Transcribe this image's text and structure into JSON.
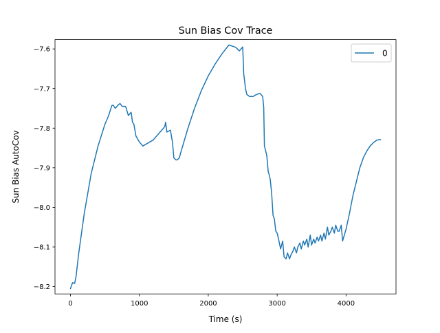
{
  "chart_data": {
    "type": "line",
    "title": "Sun Bias Cov Trace",
    "xlabel": "Time (s)",
    "ylabel": "Sun Bias AutoCov",
    "xlim": [
      -225,
      4725
    ],
    "ylim": [
      -8.2185,
      -7.5765
    ],
    "xticks": [
      0,
      1000,
      2000,
      3000,
      4000
    ],
    "xtick_labels": [
      "0",
      "1000",
      "2000",
      "3000",
      "4000"
    ],
    "yticks": [
      -8.2,
      -8.1,
      -8.0,
      -7.9,
      -7.8,
      -7.7,
      -7.6
    ],
    "ytick_labels": [
      "−8.2",
      "−8.1",
      "−8.0",
      "−7.9",
      "−7.8",
      "−7.7",
      "−7.6"
    ],
    "grid": false,
    "legend": "top-right",
    "series": [
      {
        "name": "0",
        "color": "#1f77b4",
        "x": [
          0,
          30,
          60,
          80,
          120,
          200,
          300,
          400,
          500,
          550,
          600,
          620,
          650,
          700,
          720,
          750,
          800,
          840,
          880,
          900,
          920,
          950,
          1000,
          1050,
          1100,
          1200,
          1300,
          1350,
          1370,
          1380,
          1400,
          1450,
          1480,
          1500,
          1530,
          1550,
          1580,
          1600,
          1700,
          1800,
          1900,
          2000,
          2100,
          2200,
          2300,
          2400,
          2450,
          2500,
          2510,
          2515,
          2520,
          2540,
          2560,
          2600,
          2650,
          2700,
          2750,
          2790,
          2805,
          2815,
          2830,
          2850,
          2870,
          2880,
          2900,
          2920,
          2940,
          2960,
          2980,
          3000,
          3020,
          3050,
          3080,
          3100,
          3130,
          3150,
          3180,
          3200,
          3230,
          3250,
          3280,
          3300,
          3330,
          3350,
          3380,
          3400,
          3430,
          3450,
          3480,
          3500,
          3530,
          3550,
          3580,
          3600,
          3630,
          3650,
          3680,
          3700,
          3730,
          3750,
          3780,
          3800,
          3830,
          3850,
          3880,
          3900,
          3930,
          3950,
          4000,
          4050,
          4100,
          4150,
          4200,
          4250,
          4300,
          4350,
          4400,
          4450,
          4500
        ],
        "y": [
          -8.205,
          -8.19,
          -8.192,
          -8.175,
          -8.115,
          -8.015,
          -7.915,
          -7.845,
          -7.79,
          -7.77,
          -7.743,
          -7.742,
          -7.75,
          -7.74,
          -7.738,
          -7.745,
          -7.745,
          -7.768,
          -7.76,
          -7.785,
          -7.79,
          -7.82,
          -7.835,
          -7.845,
          -7.84,
          -7.83,
          -7.81,
          -7.8,
          -7.795,
          -7.785,
          -7.81,
          -7.805,
          -7.835,
          -7.875,
          -7.88,
          -7.88,
          -7.875,
          -7.862,
          -7.803,
          -7.75,
          -7.705,
          -7.668,
          -7.638,
          -7.612,
          -7.59,
          -7.596,
          -7.605,
          -7.595,
          -7.64,
          -7.665,
          -7.67,
          -7.7,
          -7.715,
          -7.72,
          -7.72,
          -7.715,
          -7.712,
          -7.72,
          -7.748,
          -7.845,
          -7.855,
          -7.87,
          -7.91,
          -7.915,
          -7.93,
          -7.965,
          -8.02,
          -8.03,
          -8.06,
          -8.065,
          -8.08,
          -8.105,
          -8.085,
          -8.125,
          -8.13,
          -8.115,
          -8.13,
          -8.12,
          -8.11,
          -8.1,
          -8.115,
          -8.1,
          -8.09,
          -8.105,
          -8.085,
          -8.095,
          -8.08,
          -8.1,
          -8.07,
          -8.095,
          -8.08,
          -8.09,
          -8.075,
          -8.085,
          -8.07,
          -8.085,
          -8.065,
          -8.08,
          -8.05,
          -8.07,
          -8.06,
          -8.05,
          -8.065,
          -8.045,
          -8.06,
          -8.06,
          -8.045,
          -8.085,
          -8.055,
          -8.015,
          -7.97,
          -7.935,
          -7.9,
          -7.875,
          -7.858,
          -7.845,
          -7.836,
          -7.83,
          -7.829
        ]
      }
    ]
  }
}
